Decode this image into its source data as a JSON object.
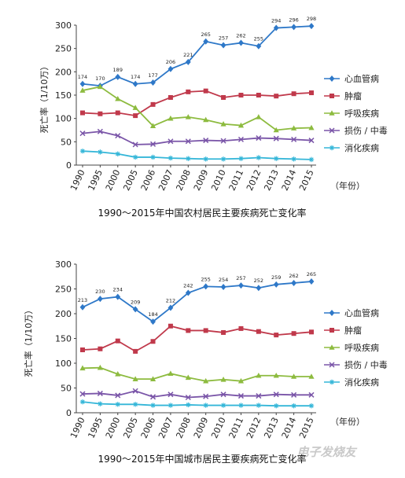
{
  "x_unit_label": "（年份）",
  "watermark": "电子发烧友",
  "colors": {
    "心血管病": "#2e78c8",
    "肿瘤": "#c0394b",
    "呼吸疾病": "#8dbb3f",
    "损伤 / 中毒": "#7a55a8",
    "消化疾病": "#34b6d8",
    "axis": "#444444"
  },
  "chart_data": [
    {
      "type": "line",
      "title": "1990～2015年中国农村居民主要疾病死亡变化率",
      "ylabel": "死亡率（1/10万）",
      "xlabel": "（年份）",
      "categories": [
        "1990",
        "1995",
        "2000",
        "2005",
        "2006",
        "2007",
        "2008",
        "2009",
        "2010",
        "2011",
        "2012",
        "2013",
        "2014",
        "2015"
      ],
      "ylim": [
        0,
        300
      ],
      "yticks": [
        0,
        50,
        100,
        150,
        200,
        250,
        300
      ],
      "legend": "right",
      "series": [
        {
          "name": "心血管病",
          "marker": "diamond",
          "values": [
            174,
            170,
            189,
            174,
            177,
            206,
            221,
            265,
            257,
            262,
            255,
            294,
            296,
            298
          ],
          "labels": [
            "174",
            "170",
            "189",
            "174",
            "177",
            "206",
            "221",
            "265",
            "257",
            "262",
            "255",
            "294",
            "296",
            "298"
          ]
        },
        {
          "name": "肿瘤",
          "marker": "square",
          "values": [
            112,
            110,
            112,
            106,
            130,
            145,
            157,
            159,
            145,
            150,
            150,
            148,
            153,
            155
          ]
        },
        {
          "name": "呼吸疾病",
          "marker": "triangle",
          "values": [
            160,
            168,
            142,
            123,
            84,
            100,
            103,
            97,
            88,
            85,
            103,
            75,
            79,
            80
          ]
        },
        {
          "name": "损伤 / 中毒",
          "marker": "x",
          "values": [
            68,
            72,
            63,
            44,
            45,
            51,
            51,
            53,
            52,
            55,
            58,
            57,
            55,
            53
          ]
        },
        {
          "name": "消化疾病",
          "marker": "star",
          "values": [
            30,
            28,
            24,
            17,
            17,
            15,
            14,
            13,
            13,
            14,
            16,
            14,
            13,
            12
          ]
        }
      ]
    },
    {
      "type": "line",
      "title": "1990～2015年中国城市居民主要疾病死亡变化率",
      "ylabel": "死亡率（1/10万）",
      "xlabel": "（年份）",
      "categories": [
        "1990",
        "1995",
        "2000",
        "2005",
        "2006",
        "2007",
        "2008",
        "2009",
        "2010",
        "2011",
        "2012",
        "2013",
        "2014",
        "2015"
      ],
      "ylim": [
        0,
        300
      ],
      "yticks": [
        0,
        50,
        100,
        150,
        200,
        250,
        300
      ],
      "legend": "right",
      "series": [
        {
          "name": "心血管病",
          "marker": "diamond",
          "values": [
            213,
            230,
            234,
            209,
            184,
            212,
            242,
            255,
            254,
            257,
            252,
            259,
            262,
            265
          ],
          "labels": [
            "213",
            "230",
            "234",
            "209",
            "184",
            "212",
            "242",
            "255",
            "254",
            "257",
            "252",
            "259",
            "262",
            "265"
          ]
        },
        {
          "name": "肿瘤",
          "marker": "square",
          "values": [
            127,
            129,
            145,
            124,
            144,
            175,
            166,
            166,
            162,
            170,
            164,
            157,
            160,
            163
          ]
        },
        {
          "name": "呼吸疾病",
          "marker": "triangle",
          "values": [
            90,
            91,
            78,
            68,
            68,
            79,
            71,
            64,
            67,
            64,
            75,
            75,
            73,
            73
          ]
        },
        {
          "name": "损伤 / 中毒",
          "marker": "x",
          "values": [
            38,
            39,
            35,
            44,
            32,
            37,
            31,
            33,
            37,
            34,
            34,
            37,
            36,
            36
          ]
        },
        {
          "name": "消化疾病",
          "marker": "star",
          "values": [
            22,
            18,
            17,
            17,
            15,
            15,
            16,
            15,
            15,
            15,
            15,
            14,
            14,
            14
          ]
        }
      ]
    }
  ]
}
